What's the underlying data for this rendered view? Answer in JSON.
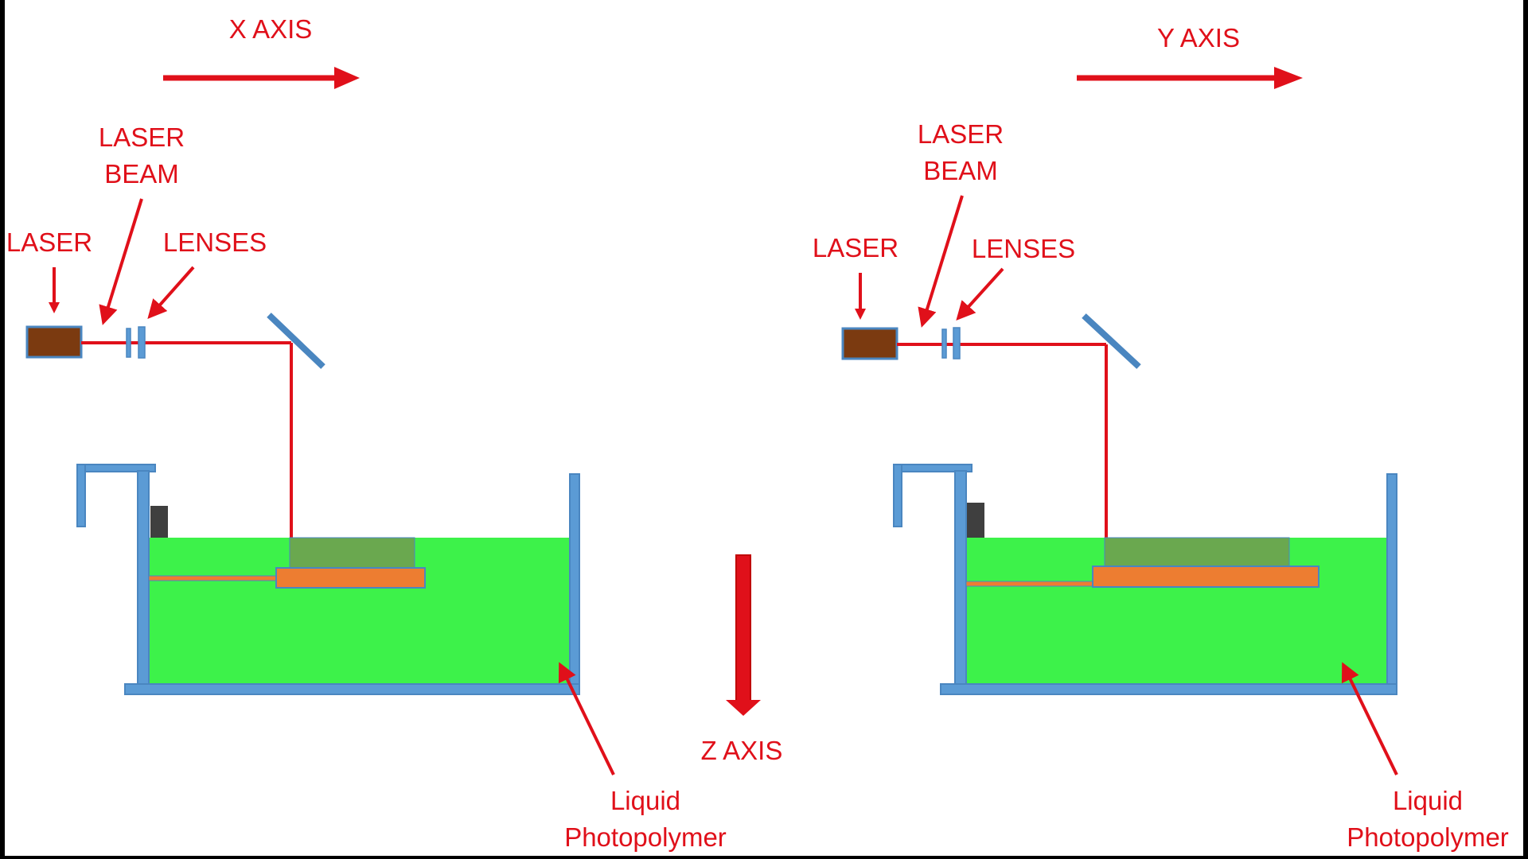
{
  "colors": {
    "background": "#ffffff",
    "frame": "#000000",
    "accent_red": "#e0101a",
    "tank_stroke": "#4a86c0",
    "tank_fill": "#5b9bd5",
    "liquid": "#3df24a",
    "cured_layer": "#6aa84f",
    "platform": "#ed7d31",
    "laser_body": "#7b3a10",
    "elevator_block": "#3f3f3f"
  },
  "axes": {
    "x_label": "X AXIS",
    "y_label": "Y AXIS",
    "z_label": "Z AXIS"
  },
  "left_panel": {
    "laser_label": "LASER",
    "beam_label_line1": "LASER",
    "beam_label_line2": "BEAM",
    "lenses_label": "LENSES",
    "liquid_label_line1": "Liquid",
    "liquid_label_line2": "Photopolymer"
  },
  "right_panel": {
    "laser_label": "LASER",
    "beam_label_line1": "LASER",
    "beam_label_line2": "BEAM",
    "lenses_label": "LENSES",
    "liquid_label_line1": "Liquid",
    "liquid_label_line2": "Photopolymer"
  }
}
